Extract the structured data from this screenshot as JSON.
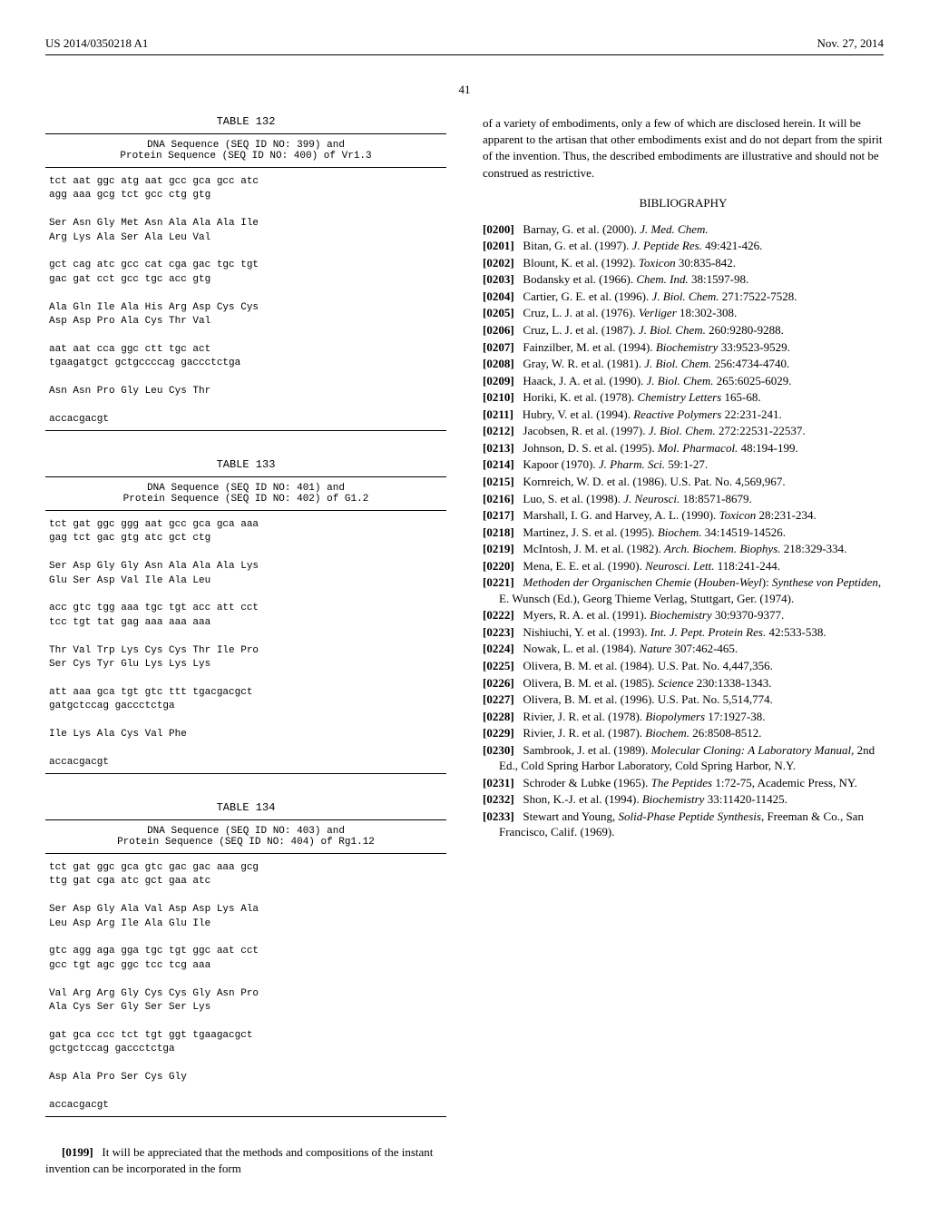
{
  "header": {
    "left": "US 2014/0350218 A1",
    "right": "Nov. 27, 2014"
  },
  "page_number": "41",
  "tables": [
    {
      "title": "TABLE 132",
      "header": "DNA Sequence (SEQ ID NO: 399) and\nProtein Sequence (SEQ ID NO: 400) of Vr1.3",
      "body": "tct aat ggc atg aat gcc gca gcc atc\nagg aaa gcg tct gcc ctg gtg\n\nSer Asn Gly Met Asn Ala Ala Ala Ile\nArg Lys Ala Ser Ala Leu Val\n\ngct cag atc gcc cat cga gac tgc tgt\ngac gat cct gcc tgc acc gtg\n\nAla Gln Ile Ala His Arg Asp Cys Cys\nAsp Asp Pro Ala Cys Thr Val\n\naat aat cca ggc ctt tgc act\ntgaagatgct gctgccccag gaccctctga\n\nAsn Asn Pro Gly Leu Cys Thr\n\naccacgacgt"
    },
    {
      "title": "TABLE 133",
      "header": "DNA Sequence (SEQ ID NO: 401) and\nProtein Sequence (SEQ ID NO: 402) of G1.2",
      "body": "tct gat ggc ggg aat gcc gca gca aaa\ngag tct gac gtg atc gct ctg\n\nSer Asp Gly Gly Asn Ala Ala Ala Lys\nGlu Ser Asp Val Ile Ala Leu\n\nacc gtc tgg aaa tgc tgt acc att cct\ntcc tgt tat gag aaa aaa aaa\n\nThr Val Trp Lys Cys Cys Thr Ile Pro\nSer Cys Tyr Glu Lys Lys Lys\n\natt aaa gca tgt gtc ttt tgacgacgct\ngatgctccag gaccctctga\n\nIle Lys Ala Cys Val Phe\n\naccacgacgt"
    },
    {
      "title": "TABLE 134",
      "header": "DNA Sequence (SEQ ID NO: 403) and\nProtein Sequence (SEQ ID NO: 404) of Rg1.12",
      "body": "tct gat ggc gca gtc gac gac aaa gcg\nttg gat cga atc gct gaa atc\n\nSer Asp Gly Ala Val Asp Asp Lys Ala\nLeu Asp Arg Ile Ala Glu Ile\n\ngtc agg aga gga tgc tgt ggc aat cct\ngcc tgt agc ggc tcc tcg aaa\n\nVal Arg Arg Gly Cys Cys Gly Asn Pro\nAla Cys Ser Gly Ser Ser Lys\n\ngat gca ccc tct tgt ggt tgaagacgct\ngctgctccag gaccctctga\n\nAsp Ala Pro Ser Cys Gly\n\naccacgacgt"
    }
  ],
  "paragraph_0199": {
    "num": "[0199]",
    "text": "It will be appreciated that the methods and compositions of the instant invention can be incorporated in the form"
  },
  "right_intro": "of a variety of embodiments, only a few of which are disclosed herein. It will be apparent to the artisan that other embodiments exist and do not depart from the spirit of the invention. Thus, the described embodiments are illustrative and should not be construed as restrictive.",
  "biblio_heading": "BIBLIOGRAPHY",
  "refs": [
    {
      "n": "[0200]",
      "html": "Barnay, G. et al. (2000). <em>J. Med. Chem.</em>"
    },
    {
      "n": "[0201]",
      "html": "Bitan, G. et al. (1997). <em>J. Peptide Res.</em> 49:421-426."
    },
    {
      "n": "[0202]",
      "html": "Blount, K. et al. (1992). <em>Toxicon</em> 30:835-842."
    },
    {
      "n": "[0203]",
      "html": "Bodansky et al. (1966). <em>Chem. Ind.</em> 38:1597-98."
    },
    {
      "n": "[0204]",
      "html": "Cartier, G. E. et al. (1996). <em>J. Biol. Chem.</em> 271:7522-7528."
    },
    {
      "n": "[0205]",
      "html": "Cruz, L. J. at al. (1976). <em>Verliger</em> 18:302-308."
    },
    {
      "n": "[0206]",
      "html": "Cruz, L. J. et al. (1987). <em>J. Biol. Chem.</em> 260:9280-9288."
    },
    {
      "n": "[0207]",
      "html": "Fainzilber, M. et al. (1994). <em>Biochemistry</em> 33:9523-9529."
    },
    {
      "n": "[0208]",
      "html": "Gray, W. R. et al. (1981). <em>J. Biol. Chem.</em> 256:4734-4740."
    },
    {
      "n": "[0209]",
      "html": "Haack, J. A. et al. (1990). <em>J. Biol. Chem.</em> 265:6025-6029."
    },
    {
      "n": "[0210]",
      "html": "Horiki, K. et al. (1978). <em>Chemistry Letters</em> 165-68."
    },
    {
      "n": "[0211]",
      "html": "Hubry, V. et al. (1994). <em>Reactive Polymers</em> 22:231-241."
    },
    {
      "n": "[0212]",
      "html": "Jacobsen, R. et al. (1997). <em>J. Biol. Chem.</em> 272:22531-22537."
    },
    {
      "n": "[0213]",
      "html": "Johnson, D. S. et al. (1995). <em>Mol. Pharmacol.</em> 48:194-199."
    },
    {
      "n": "[0214]",
      "html": "Kapoor (1970). <em>J. Pharm. Sci.</em> 59:1-27."
    },
    {
      "n": "[0215]",
      "html": "Kornreich, W. D. et al. (1986). U.S. Pat. No. 4,569,967."
    },
    {
      "n": "[0216]",
      "html": "Luo, S. et al. (1998). <em>J. Neurosci.</em> 18:8571-8679."
    },
    {
      "n": "[0217]",
      "html": "Marshall, I. G. and Harvey, A. L. (1990). <em>Toxicon</em> 28:231-234."
    },
    {
      "n": "[0218]",
      "html": "Martinez, J. S. et al. (1995). <em>Biochem.</em> 34:14519-14526."
    },
    {
      "n": "[0219]",
      "html": "McIntosh, J. M. et al. (1982). <em>Arch. Biochem. Biophys.</em> 218:329-334."
    },
    {
      "n": "[0220]",
      "html": "Mena, E. E. et al. (1990). <em>Neurosci. Lett.</em> 118:241-244."
    },
    {
      "n": "[0221]",
      "html": "<em>Methoden der Organischen Chemie</em> (<em>Houben-Weyl</em>): <em>Synthese von Peptiden</em>, E. Wunsch (Ed.), Georg Thieme Verlag, Stuttgart, Ger. (1974)."
    },
    {
      "n": "[0222]",
      "html": "Myers, R. A. et al. (1991). <em>Biochemistry</em> 30:9370-9377."
    },
    {
      "n": "[0223]",
      "html": "Nishiuchi, Y. et al. (1993). <em>Int. J. Pept. Protein Res.</em> 42:533-538."
    },
    {
      "n": "[0224]",
      "html": "Nowak, L. et al. (1984). <em>Nature</em> 307:462-465."
    },
    {
      "n": "[0225]",
      "html": "Olivera, B. M. et al. (1984). U.S. Pat. No. 4,447,356."
    },
    {
      "n": "[0226]",
      "html": "Olivera, B. M. et al. (1985). <em>Science</em> 230:1338-1343."
    },
    {
      "n": "[0227]",
      "html": "Olivera, B. M. et al. (1996). U.S. Pat. No. 5,514,774."
    },
    {
      "n": "[0228]",
      "html": "Rivier, J. R. et al. (1978). <em>Biopolymers</em> 17:1927-38."
    },
    {
      "n": "[0229]",
      "html": "Rivier, J. R. et al. (1987). <em>Biochem.</em> 26:8508-8512."
    },
    {
      "n": "[0230]",
      "html": "Sambrook, J. et al. (1989). <em>Molecular Cloning: A Laboratory Manual,</em> 2nd Ed., Cold Spring Harbor Laboratory, Cold Spring Harbor, N.Y."
    },
    {
      "n": "[0231]",
      "html": "Schroder &amp; Lubke (1965). <em>The Peptides</em> 1:72-75, Academic Press, NY."
    },
    {
      "n": "[0232]",
      "html": "Shon, K.-J. et al. (1994). <em>Biochemistry</em> 33:11420-11425."
    },
    {
      "n": "[0233]",
      "html": "Stewart and Young, <em>Solid-Phase Peptide Synthesis</em>, Freeman &amp; Co., San Francisco, Calif. (1969)."
    }
  ]
}
